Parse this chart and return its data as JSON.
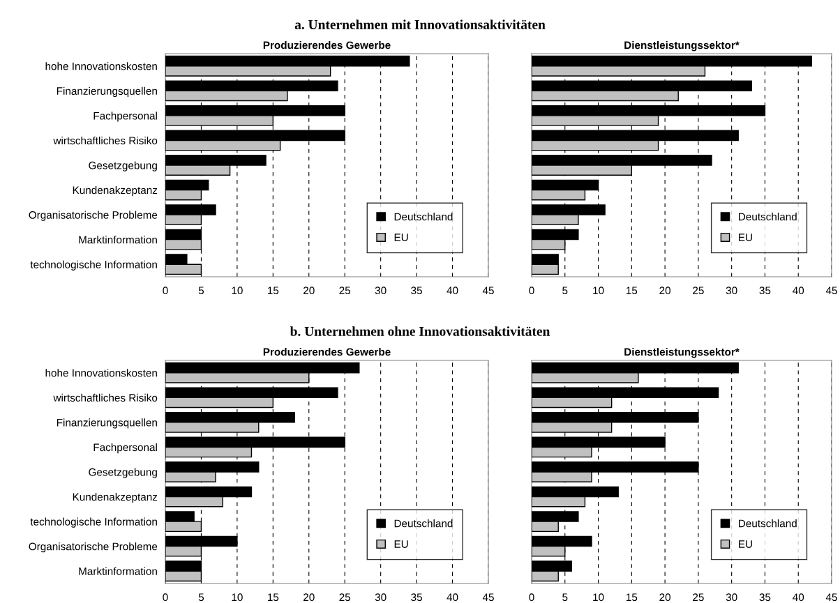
{
  "chart_data": [
    {
      "type": "bar",
      "orientation": "horizontal",
      "title": "Produzierendes Gewerbe",
      "annotations": [
        "a. Unternehmen mit Innovationsaktivitäten"
      ],
      "categories": [
        "hohe Innovationskosten",
        "Finanzierungsquellen",
        "Fachpersonal",
        "wirtschaftliches Risiko",
        "Gesetzgebung",
        "Kundenakzeptanz",
        "Organisatorische Probleme",
        "Marktinformation",
        "technologische Information"
      ],
      "series": [
        {
          "name": "Deutschland",
          "color": "#000000",
          "values": [
            34,
            24,
            25,
            25,
            14,
            6,
            7,
            5,
            3
          ]
        },
        {
          "name": "EU",
          "color": "#c0c0c0",
          "values": [
            23,
            17,
            15,
            16,
            9,
            5,
            5,
            5,
            5
          ]
        }
      ],
      "xlim": [
        0,
        45
      ],
      "xticks": [
        0,
        5,
        10,
        15,
        20,
        25,
        30,
        35,
        40,
        45
      ],
      "grid": "x",
      "legend": "bottom right"
    },
    {
      "type": "bar",
      "orientation": "horizontal",
      "title": "Dienstleistungssektor*",
      "categories": [
        null,
        null,
        null,
        null,
        null,
        null,
        null,
        null,
        null
      ],
      "series": [
        {
          "name": "Deutschland",
          "color": "#000000",
          "values": [
            42,
            33,
            35,
            31,
            27,
            10,
            11,
            7,
            4
          ]
        },
        {
          "name": "EU",
          "color": "#c0c0c0",
          "values": [
            26,
            22,
            19,
            19,
            15,
            8,
            7,
            5,
            4
          ]
        }
      ],
      "xlim": [
        0,
        45
      ],
      "xticks": [
        0,
        5,
        10,
        15,
        20,
        25,
        30,
        35,
        40,
        45
      ],
      "grid": "x",
      "legend": "bottom right",
      "tick_labels": "x"
    },
    {
      "type": "bar",
      "orientation": "horizontal",
      "title": "Produzierendes Gewerbe",
      "annotations": [
        "b. Unternehmen ohne Innovationsaktivitäten"
      ],
      "categories": [
        "hohe Innovationskosten",
        "wirtschaftliches Risiko",
        "Finanzierungsquellen",
        "Fachpersonal",
        "Gesetzgebung",
        "Kundenakzeptanz",
        "technologische Information",
        "Organisatorische Probleme",
        "Marktinformation"
      ],
      "series": [
        {
          "name": "Deutschland",
          "color": "#000000",
          "values": [
            27,
            24,
            18,
            25,
            13,
            12,
            4,
            10,
            5
          ]
        },
        {
          "name": "EU",
          "color": "#c0c0c0",
          "values": [
            20,
            15,
            13,
            12,
            7,
            8,
            5,
            5,
            5
          ]
        }
      ],
      "xlim": [
        0,
        45
      ],
      "xticks": [
        0,
        5,
        10,
        15,
        20,
        25,
        30,
        35,
        40,
        45
      ],
      "grid": "x",
      "legend": "bottom right"
    },
    {
      "type": "bar",
      "orientation": "horizontal",
      "title": "Dienstleistungssektor*",
      "categories": [
        null,
        null,
        null,
        null,
        null,
        null,
        null,
        null,
        null
      ],
      "series": [
        {
          "name": "Deutschland",
          "color": "#000000",
          "values": [
            31,
            28,
            25,
            20,
            25,
            13,
            7,
            9,
            6
          ]
        },
        {
          "name": "EU",
          "color": "#c0c0c0",
          "values": [
            16,
            12,
            12,
            9,
            9,
            8,
            4,
            5,
            4
          ]
        }
      ],
      "xlim": [
        0,
        45
      ],
      "xticks": [
        0,
        5,
        10,
        15,
        20,
        25,
        30,
        35,
        40,
        45
      ],
      "grid": "x",
      "legend": "bottom right",
      "tick_labels": "x"
    }
  ]
}
